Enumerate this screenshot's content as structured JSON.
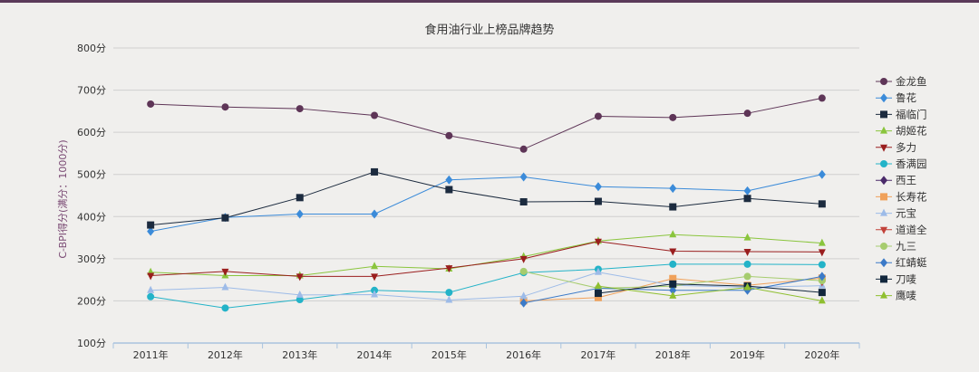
{
  "chart_data": {
    "type": "line",
    "title": "食用油行业上榜品牌趋势",
    "ylabel": "C-BPI得分(满分：1000分)",
    "xlabel": "",
    "categories": [
      "2011年",
      "2012年",
      "2013年",
      "2014年",
      "2015年",
      "2016年",
      "2017年",
      "2018年",
      "2019年",
      "2020年"
    ],
    "ylim": [
      100,
      800
    ],
    "yticks": [
      "100分",
      "200分",
      "300分",
      "400分",
      "500分",
      "600分",
      "700分",
      "800分"
    ],
    "ytick_values": [
      100,
      200,
      300,
      400,
      500,
      600,
      700,
      800
    ],
    "grid": true,
    "legend_position": "right",
    "series": [
      {
        "name": "金龙鱼",
        "color": "#5e3557",
        "marker": "circle",
        "values": [
          667,
          660,
          656,
          640,
          592,
          560,
          638,
          635,
          645,
          681
        ]
      },
      {
        "name": "鲁花",
        "color": "#3b8bd9",
        "marker": "diamond",
        "values": [
          365,
          398,
          406,
          406,
          487,
          494,
          471,
          467,
          461,
          500
        ]
      },
      {
        "name": "福临门",
        "color": "#1c2b3f",
        "marker": "square",
        "values": [
          380,
          397,
          445,
          506,
          464,
          435,
          436,
          423,
          443,
          430
        ]
      },
      {
        "name": "胡姬花",
        "color": "#8ac53d",
        "marker": "triangle",
        "values": [
          268,
          260,
          260,
          282,
          276,
          305,
          342,
          357,
          350,
          337
        ]
      },
      {
        "name": "多力",
        "color": "#9a1e1e",
        "marker": "triangle-down",
        "values": [
          260,
          270,
          258,
          258,
          278,
          300,
          341,
          318,
          317,
          316
        ]
      },
      {
        "name": "香满园",
        "color": "#23b3c8",
        "marker": "circle",
        "values": [
          210,
          183,
          203,
          225,
          220,
          267,
          275,
          287,
          287,
          286
        ]
      },
      {
        "name": "西王",
        "color": "#4a2a6a",
        "marker": "diamond",
        "values": [
          null,
          null,
          null,
          null,
          null,
          null,
          null,
          null,
          null,
          null
        ]
      },
      {
        "name": "长寿花",
        "color": "#f0a15a",
        "marker": "square",
        "values": [
          null,
          null,
          null,
          null,
          null,
          200,
          208,
          253,
          237,
          254
        ]
      },
      {
        "name": "元宝",
        "color": "#9dbbe8",
        "marker": "triangle",
        "values": [
          225,
          232,
          214,
          215,
          202,
          211,
          268,
          237,
          232,
          236
        ]
      },
      {
        "name": "道道全",
        "color": "#c2423a",
        "marker": "triangle-down",
        "values": [
          null,
          null,
          null,
          null,
          null,
          null,
          null,
          null,
          null,
          245
        ]
      },
      {
        "name": "九三",
        "color": "#a6cc6e",
        "marker": "circle",
        "values": [
          null,
          null,
          null,
          null,
          null,
          270,
          230,
          235,
          258,
          248
        ]
      },
      {
        "name": "红蜻蜓",
        "color": "#3b7ac8",
        "marker": "diamond",
        "values": [
          null,
          null,
          null,
          null,
          null,
          195,
          230,
          225,
          225,
          258
        ]
      },
      {
        "name": "刀唛",
        "color": "#12273d",
        "marker": "square",
        "values": [
          null,
          null,
          null,
          null,
          null,
          null,
          218,
          240,
          235,
          220
        ]
      },
      {
        "name": "鹰唛",
        "color": "#8fbf2f",
        "marker": "triangle",
        "values": [
          null,
          null,
          null,
          null,
          null,
          null,
          235,
          212,
          232,
          200
        ]
      }
    ]
  }
}
